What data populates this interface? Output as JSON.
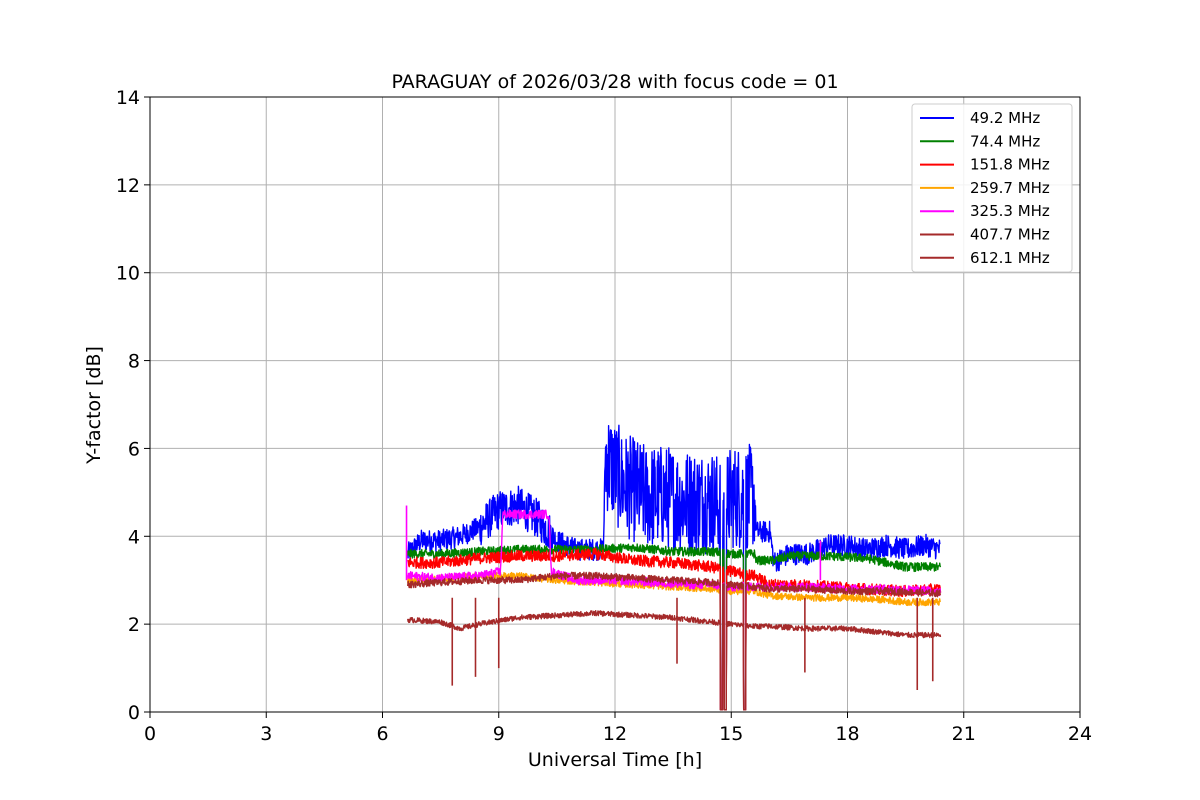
{
  "chart_data": {
    "type": "line",
    "title": "PARAGUAY of 2026/03/28 with focus code = 01",
    "xlabel": "Universal Time [h]",
    "ylabel": "Y-factor [dB]",
    "xlim": [
      0,
      24
    ],
    "ylim": [
      0,
      14
    ],
    "xticks": [
      0,
      3,
      6,
      9,
      12,
      15,
      18,
      21,
      24
    ],
    "yticks": [
      0,
      2,
      4,
      6,
      8,
      10,
      12,
      14
    ],
    "grid": true,
    "legend_position": "top-right",
    "series": [
      {
        "name": " 49.2 MHz",
        "color": "#0000ff",
        "noise": 0.25,
        "points": [
          [
            6.65,
            3.6
          ],
          [
            7.0,
            3.9
          ],
          [
            7.5,
            3.9
          ],
          [
            8.0,
            4.0
          ],
          [
            8.5,
            4.2
          ],
          [
            9.0,
            4.6
          ],
          [
            9.5,
            4.7
          ],
          [
            10.0,
            4.4
          ],
          [
            10.5,
            3.9
          ],
          [
            11.0,
            3.7
          ],
          [
            11.7,
            3.7
          ],
          [
            11.75,
            5.8
          ],
          [
            12.2,
            5.2
          ],
          [
            12.8,
            4.9
          ],
          [
            13.3,
            4.9
          ],
          [
            13.8,
            4.8
          ],
          [
            14.5,
            4.8
          ],
          [
            14.8,
            4.6
          ],
          [
            15.0,
            4.9
          ],
          [
            15.6,
            4.9
          ],
          [
            15.65,
            4.1
          ],
          [
            16.0,
            4.1
          ],
          [
            16.1,
            3.4
          ],
          [
            16.5,
            3.6
          ],
          [
            17.0,
            3.6
          ],
          [
            17.5,
            3.8
          ],
          [
            18.0,
            3.8
          ],
          [
            18.5,
            3.7
          ],
          [
            19.0,
            3.8
          ],
          [
            19.5,
            3.7
          ],
          [
            20.0,
            3.8
          ],
          [
            20.4,
            3.7
          ]
        ]
      },
      {
        "name": " 74.4 MHz",
        "color": "#008000",
        "noise": 0.1,
        "points": [
          [
            6.65,
            3.6
          ],
          [
            7.5,
            3.6
          ],
          [
            8.5,
            3.65
          ],
          [
            9.5,
            3.7
          ],
          [
            10.5,
            3.7
          ],
          [
            11.5,
            3.7
          ],
          [
            12.5,
            3.75
          ],
          [
            13.5,
            3.65
          ],
          [
            14.5,
            3.65
          ],
          [
            15.0,
            3.6
          ],
          [
            15.6,
            3.6
          ],
          [
            15.65,
            3.45
          ],
          [
            16.1,
            3.45
          ],
          [
            16.5,
            3.55
          ],
          [
            17.5,
            3.55
          ],
          [
            18.5,
            3.5
          ],
          [
            19.5,
            3.3
          ],
          [
            20.4,
            3.3
          ]
        ]
      },
      {
        "name": "151.8 MHz",
        "color": "#ff0000",
        "noise": 0.13,
        "points": [
          [
            6.65,
            3.4
          ],
          [
            7.5,
            3.4
          ],
          [
            8.5,
            3.5
          ],
          [
            9.5,
            3.55
          ],
          [
            10.5,
            3.55
          ],
          [
            11.5,
            3.6
          ],
          [
            12.5,
            3.45
          ],
          [
            13.5,
            3.4
          ],
          [
            14.5,
            3.3
          ],
          [
            15.0,
            3.2
          ],
          [
            15.6,
            3.1
          ],
          [
            16.0,
            2.9
          ],
          [
            16.5,
            2.9
          ],
          [
            17.5,
            2.85
          ],
          [
            18.5,
            2.8
          ],
          [
            19.5,
            2.75
          ],
          [
            20.4,
            2.8
          ]
        ]
      },
      {
        "name": "259.7 MHz",
        "color": "#ffa500",
        "noise": 0.08,
        "points": [
          [
            6.65,
            3.0
          ],
          [
            7.5,
            3.05
          ],
          [
            8.5,
            3.1
          ],
          [
            9.5,
            3.1
          ],
          [
            10.5,
            3.0
          ],
          [
            11.5,
            2.95
          ],
          [
            12.5,
            2.9
          ],
          [
            13.5,
            2.85
          ],
          [
            14.5,
            2.8
          ],
          [
            15.0,
            2.75
          ],
          [
            15.6,
            2.75
          ],
          [
            16.0,
            2.65
          ],
          [
            17.0,
            2.6
          ],
          [
            18.0,
            2.6
          ],
          [
            19.0,
            2.55
          ],
          [
            19.5,
            2.5
          ],
          [
            20.4,
            2.5
          ]
        ]
      },
      {
        "name": "325.3 MHz",
        "color": "#ff00ff",
        "noise": 0.1,
        "points": [
          [
            6.65,
            3.1
          ],
          [
            7.5,
            3.05
          ],
          [
            8.5,
            3.1
          ],
          [
            9.05,
            3.2
          ],
          [
            9.1,
            4.5
          ],
          [
            10.3,
            4.5
          ],
          [
            10.35,
            3.2
          ],
          [
            11.0,
            3.0
          ],
          [
            12.0,
            3.0
          ],
          [
            13.0,
            2.95
          ],
          [
            14.0,
            2.9
          ],
          [
            14.5,
            2.9
          ],
          [
            15.0,
            2.85
          ],
          [
            16.0,
            2.85
          ],
          [
            17.0,
            2.85
          ],
          [
            18.0,
            2.8
          ],
          [
            19.0,
            2.8
          ],
          [
            20.4,
            2.75
          ]
        ]
      },
      {
        "name": "407.7 MHz",
        "color": "#a52a2a",
        "noise": 0.08,
        "points": [
          [
            6.65,
            2.9
          ],
          [
            7.5,
            2.95
          ],
          [
            8.5,
            3.0
          ],
          [
            9.5,
            3.0
          ],
          [
            10.5,
            3.1
          ],
          [
            11.5,
            3.1
          ],
          [
            12.5,
            3.05
          ],
          [
            13.5,
            3.0
          ],
          [
            14.5,
            2.95
          ],
          [
            15.0,
            2.9
          ],
          [
            15.6,
            2.85
          ],
          [
            16.0,
            2.8
          ],
          [
            17.0,
            2.8
          ],
          [
            18.0,
            2.75
          ],
          [
            19.0,
            2.75
          ],
          [
            20.4,
            2.7
          ]
        ]
      },
      {
        "name": "612.1 MHz",
        "color": "#a52a2a",
        "noise": 0.06,
        "points": [
          [
            6.65,
            2.1
          ],
          [
            7.5,
            2.05
          ],
          [
            8.0,
            1.9
          ],
          [
            8.5,
            2.0
          ],
          [
            9.5,
            2.15
          ],
          [
            10.5,
            2.2
          ],
          [
            11.5,
            2.25
          ],
          [
            12.5,
            2.2
          ],
          [
            13.5,
            2.15
          ],
          [
            14.5,
            2.05
          ],
          [
            15.0,
            2.0
          ],
          [
            15.6,
            1.95
          ],
          [
            16.0,
            1.95
          ],
          [
            17.0,
            1.9
          ],
          [
            18.0,
            1.9
          ],
          [
            19.0,
            1.8
          ],
          [
            19.5,
            1.75
          ],
          [
            20.4,
            1.75
          ]
        ]
      }
    ],
    "dropouts_h": [
      14.75,
      14.85,
      15.35
    ],
    "spikes": [
      {
        "x": 6.62,
        "y": 4.7,
        "color": "#ff00ff"
      },
      {
        "x": 17.3,
        "y": 3.9,
        "color": "#ff00ff"
      },
      {
        "x": 7.8,
        "y": 0.6,
        "color": "#a52a2a"
      },
      {
        "x": 8.4,
        "y": 0.8,
        "color": "#a52a2a"
      },
      {
        "x": 9.0,
        "y": 1.0,
        "color": "#a52a2a"
      },
      {
        "x": 13.6,
        "y": 1.1,
        "color": "#a52a2a"
      },
      {
        "x": 16.9,
        "y": 0.9,
        "color": "#a52a2a"
      },
      {
        "x": 19.8,
        "y": 0.5,
        "color": "#a52a2a"
      },
      {
        "x": 20.2,
        "y": 0.7,
        "color": "#a52a2a"
      }
    ]
  }
}
